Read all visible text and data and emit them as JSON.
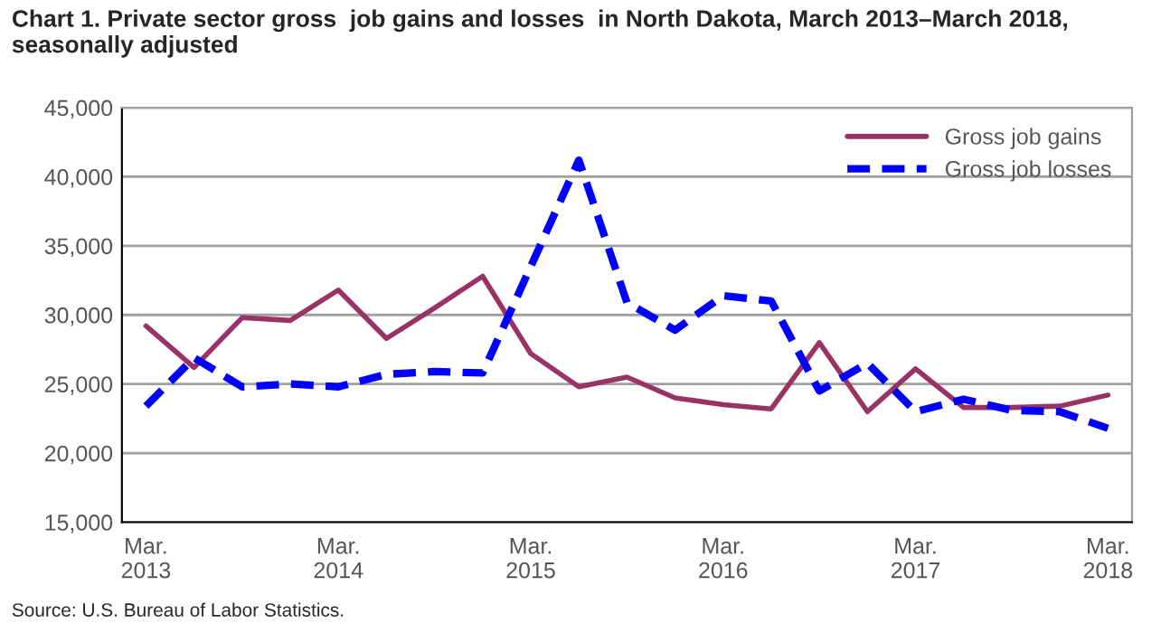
{
  "chart_data": {
    "type": "line",
    "title": "Chart 1. Private sector gross  job gains and losses  in North Dakota, March 2013–March 2018, seasonally adjusted",
    "categories": [
      "Mar.\n2013",
      null,
      null,
      null,
      "Mar.\n2014",
      null,
      null,
      null,
      "Mar.\n2015",
      null,
      null,
      null,
      "Mar.\n2016",
      null,
      null,
      null,
      "Mar.\n2017",
      null,
      null,
      null,
      "Mar.\n2018"
    ],
    "series": [
      {
        "name": "Gross job gains",
        "color": "#993366",
        "line_style": "solid",
        "values": [
          29200,
          26200,
          29800,
          29600,
          31800,
          28300,
          30500,
          32800,
          27200,
          24800,
          25500,
          24000,
          23500,
          23200,
          28000,
          23000,
          26100,
          23300,
          23300,
          23400,
          24200
        ]
      },
      {
        "name": "Gross job losses",
        "color": "#0000ff",
        "line_style": "dashed",
        "values": [
          23400,
          26900,
          24800,
          25000,
          24800,
          25700,
          25900,
          25800,
          33500,
          41200,
          30900,
          28900,
          31400,
          31000,
          24500,
          26500,
          23000,
          23900,
          23100,
          23000,
          21800
        ]
      }
    ],
    "ylim": [
      15000,
      45000
    ],
    "yticks": [
      {
        "value": 15000,
        "label": "15,000"
      },
      {
        "value": 20000,
        "label": "20,000"
      },
      {
        "value": 25000,
        "label": "25,000"
      },
      {
        "value": 30000,
        "label": "30,000"
      },
      {
        "value": 35000,
        "label": "35,000"
      },
      {
        "value": 40000,
        "label": "40,000"
      },
      {
        "value": 45000,
        "label": "45,000"
      }
    ],
    "grid": "y",
    "legend": "top right",
    "annotations": [
      "Source: U.S. Bureau of Labor Statistics."
    ]
  }
}
